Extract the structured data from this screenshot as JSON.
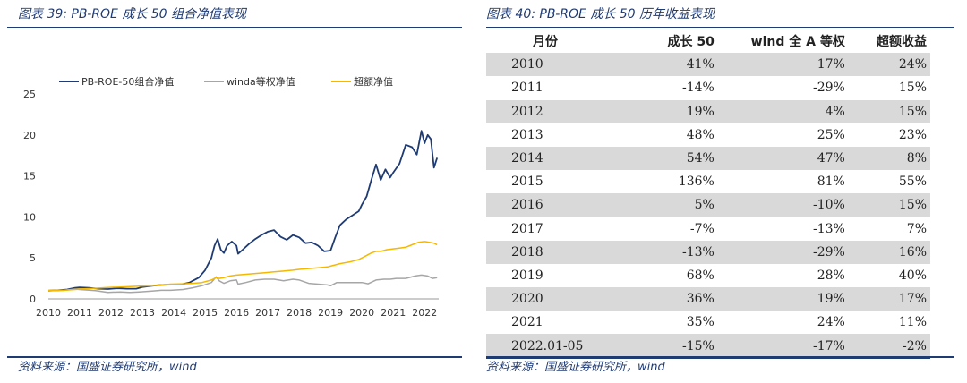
{
  "left": {
    "title": "图表 39:  PB-ROE 成长 50 组合净值表现",
    "source": "资料来源：国盛证券研究所，wind"
  },
  "right": {
    "title": "图表 40:  PB-ROE 成长 50 历年收益表现",
    "source": "资料来源：国盛证券研究所，wind",
    "headers": [
      "月份",
      "成长 50",
      "wind 全 A 等权",
      "超额收益"
    ],
    "rows": [
      [
        "2010",
        "41%",
        "17%",
        "24%"
      ],
      [
        "2011",
        "-14%",
        "-29%",
        "15%"
      ],
      [
        "2012",
        "19%",
        "4%",
        "15%"
      ],
      [
        "2013",
        "48%",
        "25%",
        "23%"
      ],
      [
        "2014",
        "54%",
        "47%",
        "8%"
      ],
      [
        "2015",
        "136%",
        "81%",
        "55%"
      ],
      [
        "2016",
        "5%",
        "-10%",
        "15%"
      ],
      [
        "2017",
        "-7%",
        "-13%",
        "7%"
      ],
      [
        "2018",
        "-13%",
        "-29%",
        "16%"
      ],
      [
        "2019",
        "68%",
        "28%",
        "40%"
      ],
      [
        "2020",
        "36%",
        "19%",
        "17%"
      ],
      [
        "2021",
        "35%",
        "24%",
        "11%"
      ],
      [
        "2022.01-05",
        "-15%",
        "-17%",
        "-2%"
      ]
    ]
  },
  "chart_data": {
    "type": "line",
    "ylim": [
      0,
      25
    ],
    "yticks": [
      0,
      5,
      10,
      15,
      20,
      25
    ],
    "xlim": [
      2010.0,
      2022.45
    ],
    "xticks": [
      "2010",
      "2011",
      "2012",
      "2013",
      "2014",
      "2015",
      "2016",
      "2017",
      "2018",
      "2019",
      "2020",
      "2021",
      "2022"
    ],
    "legend_position": "top",
    "series": [
      {
        "name": "PB-ROE-50组合净值",
        "color": "#1f3b73",
        "points": [
          [
            2010.0,
            1.0
          ],
          [
            2010.3,
            1.05
          ],
          [
            2010.6,
            1.15
          ],
          [
            2010.85,
            1.35
          ],
          [
            2011.0,
            1.4
          ],
          [
            2011.3,
            1.35
          ],
          [
            2011.6,
            1.25
          ],
          [
            2011.9,
            1.2
          ],
          [
            2012.2,
            1.3
          ],
          [
            2012.5,
            1.25
          ],
          [
            2012.8,
            1.25
          ],
          [
            2013.0,
            1.45
          ],
          [
            2013.3,
            1.6
          ],
          [
            2013.6,
            1.7
          ],
          [
            2013.9,
            1.75
          ],
          [
            2014.2,
            1.75
          ],
          [
            2014.5,
            2.0
          ],
          [
            2014.8,
            2.6
          ],
          [
            2015.0,
            3.5
          ],
          [
            2015.2,
            5.0
          ],
          [
            2015.3,
            6.5
          ],
          [
            2015.4,
            7.3
          ],
          [
            2015.5,
            6.0
          ],
          [
            2015.6,
            5.6
          ],
          [
            2015.7,
            6.5
          ],
          [
            2015.85,
            7.0
          ],
          [
            2016.0,
            6.5
          ],
          [
            2016.05,
            5.5
          ],
          [
            2016.2,
            6.0
          ],
          [
            2016.4,
            6.7
          ],
          [
            2016.6,
            7.3
          ],
          [
            2016.8,
            7.8
          ],
          [
            2017.0,
            8.2
          ],
          [
            2017.2,
            8.4
          ],
          [
            2017.4,
            7.6
          ],
          [
            2017.6,
            7.2
          ],
          [
            2017.8,
            7.8
          ],
          [
            2018.0,
            7.5
          ],
          [
            2018.2,
            6.8
          ],
          [
            2018.4,
            6.9
          ],
          [
            2018.6,
            6.5
          ],
          [
            2018.8,
            5.8
          ],
          [
            2019.0,
            5.9
          ],
          [
            2019.15,
            7.5
          ],
          [
            2019.3,
            9.0
          ],
          [
            2019.5,
            9.7
          ],
          [
            2019.7,
            10.2
          ],
          [
            2019.9,
            10.7
          ],
          [
            2020.0,
            11.5
          ],
          [
            2020.15,
            12.5
          ],
          [
            2020.3,
            14.5
          ],
          [
            2020.45,
            16.4
          ],
          [
            2020.6,
            14.5
          ],
          [
            2020.75,
            15.8
          ],
          [
            2020.9,
            14.8
          ],
          [
            2021.0,
            15.4
          ],
          [
            2021.2,
            16.5
          ],
          [
            2021.4,
            18.8
          ],
          [
            2021.6,
            18.5
          ],
          [
            2021.75,
            17.6
          ],
          [
            2021.9,
            20.5
          ],
          [
            2022.0,
            19.0
          ],
          [
            2022.1,
            20.0
          ],
          [
            2022.2,
            19.5
          ],
          [
            2022.3,
            16.0
          ],
          [
            2022.4,
            17.2
          ]
        ]
      },
      {
        "name": "winda等权净值",
        "color": "#a6a6a6",
        "points": [
          [
            2010.0,
            1.0
          ],
          [
            2010.5,
            1.05
          ],
          [
            2010.85,
            1.2
          ],
          [
            2011.0,
            1.15
          ],
          [
            2011.5,
            1.0
          ],
          [
            2011.9,
            0.8
          ],
          [
            2012.3,
            0.85
          ],
          [
            2012.6,
            0.8
          ],
          [
            2012.9,
            0.85
          ],
          [
            2013.3,
            0.95
          ],
          [
            2013.6,
            1.05
          ],
          [
            2013.9,
            1.05
          ],
          [
            2014.3,
            1.15
          ],
          [
            2014.6,
            1.35
          ],
          [
            2014.9,
            1.6
          ],
          [
            2015.2,
            2.0
          ],
          [
            2015.35,
            2.7
          ],
          [
            2015.45,
            2.2
          ],
          [
            2015.6,
            1.9
          ],
          [
            2015.8,
            2.2
          ],
          [
            2016.0,
            2.3
          ],
          [
            2016.05,
            1.8
          ],
          [
            2016.3,
            2.0
          ],
          [
            2016.6,
            2.3
          ],
          [
            2016.9,
            2.4
          ],
          [
            2017.2,
            2.4
          ],
          [
            2017.5,
            2.2
          ],
          [
            2017.8,
            2.4
          ],
          [
            2018.0,
            2.3
          ],
          [
            2018.3,
            1.9
          ],
          [
            2018.6,
            1.8
          ],
          [
            2018.9,
            1.7
          ],
          [
            2019.0,
            1.6
          ],
          [
            2019.2,
            2.0
          ],
          [
            2019.5,
            2.0
          ],
          [
            2019.8,
            2.0
          ],
          [
            2020.0,
            2.0
          ],
          [
            2020.2,
            1.85
          ],
          [
            2020.45,
            2.3
          ],
          [
            2020.7,
            2.4
          ],
          [
            2020.9,
            2.4
          ],
          [
            2021.1,
            2.5
          ],
          [
            2021.4,
            2.5
          ],
          [
            2021.7,
            2.8
          ],
          [
            2021.9,
            2.9
          ],
          [
            2022.1,
            2.8
          ],
          [
            2022.25,
            2.5
          ],
          [
            2022.4,
            2.6
          ]
        ]
      },
      {
        "name": "超额净值",
        "color": "#f5b800",
        "points": [
          [
            2010.0,
            1.0
          ],
          [
            2010.5,
            1.05
          ],
          [
            2010.85,
            1.15
          ],
          [
            2011.0,
            1.2
          ],
          [
            2011.5,
            1.3
          ],
          [
            2011.9,
            1.4
          ],
          [
            2012.3,
            1.45
          ],
          [
            2012.6,
            1.5
          ],
          [
            2012.9,
            1.55
          ],
          [
            2013.3,
            1.6
          ],
          [
            2013.6,
            1.7
          ],
          [
            2013.9,
            1.8
          ],
          [
            2014.3,
            1.85
          ],
          [
            2014.6,
            1.9
          ],
          [
            2014.9,
            2.0
          ],
          [
            2015.2,
            2.3
          ],
          [
            2015.35,
            2.6
          ],
          [
            2015.45,
            2.5
          ],
          [
            2015.6,
            2.6
          ],
          [
            2015.8,
            2.8
          ],
          [
            2016.0,
            2.9
          ],
          [
            2016.3,
            3.0
          ],
          [
            2016.6,
            3.1
          ],
          [
            2016.9,
            3.2
          ],
          [
            2017.2,
            3.3
          ],
          [
            2017.5,
            3.4
          ],
          [
            2017.8,
            3.5
          ],
          [
            2018.0,
            3.6
          ],
          [
            2018.3,
            3.7
          ],
          [
            2018.6,
            3.8
          ],
          [
            2018.9,
            3.9
          ],
          [
            2019.0,
            4.0
          ],
          [
            2019.3,
            4.3
          ],
          [
            2019.6,
            4.5
          ],
          [
            2019.9,
            4.8
          ],
          [
            2020.1,
            5.2
          ],
          [
            2020.3,
            5.6
          ],
          [
            2020.45,
            5.8
          ],
          [
            2020.6,
            5.8
          ],
          [
            2020.8,
            6.0
          ],
          [
            2021.0,
            6.1
          ],
          [
            2021.2,
            6.2
          ],
          [
            2021.4,
            6.3
          ],
          [
            2021.6,
            6.6
          ],
          [
            2021.8,
            6.9
          ],
          [
            2022.0,
            7.0
          ],
          [
            2022.15,
            6.9
          ],
          [
            2022.3,
            6.8
          ],
          [
            2022.4,
            6.6
          ]
        ]
      }
    ]
  }
}
